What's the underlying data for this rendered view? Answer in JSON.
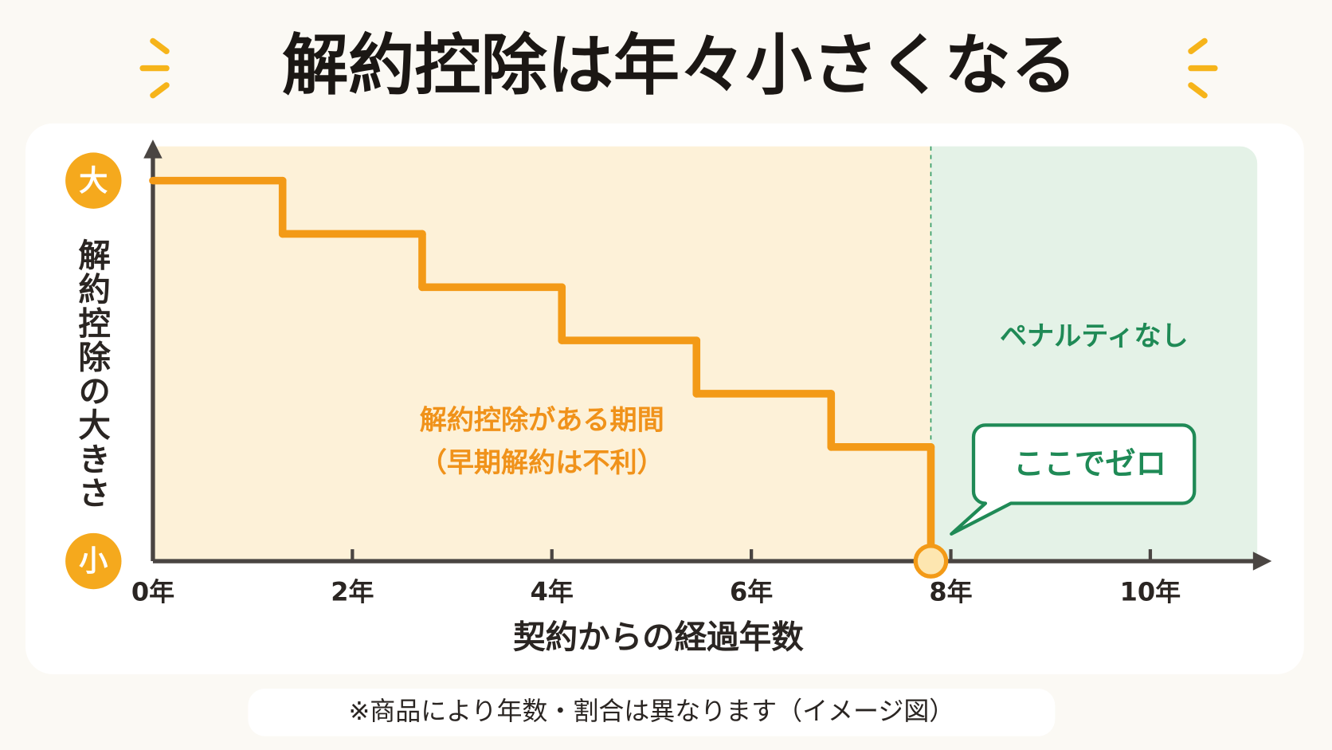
{
  "chart_data": {
    "type": "step",
    "title": "解約控除は年々小さくなる",
    "x_label": "契約からの経過年数",
    "y_label": "解約控除の大きさ",
    "x": [
      0,
      1.3,
      2.7,
      4.1,
      5.45,
      6.8,
      7.8
    ],
    "values": [
      100,
      86,
      72,
      58,
      44,
      30,
      0
    ],
    "color": "#f39a17",
    "xlim": [
      0,
      11.2
    ],
    "xticks": [
      {
        "value": 0,
        "label": "0年"
      },
      {
        "value": 2,
        "label": "2年"
      },
      {
        "value": 4,
        "label": "4年"
      },
      {
        "value": 6,
        "label": "6年"
      },
      {
        "value": 8,
        "label": "8年"
      },
      {
        "value": 10,
        "label": "10年"
      }
    ],
    "ylim": [
      0,
      109
    ],
    "yticks": [
      {
        "value": 100,
        "label": "大"
      },
      {
        "value": 0,
        "label": "小"
      }
    ],
    "annotations": {
      "period_line1": "解約控除がある期間",
      "period_line2": "（早期解約は不利）",
      "no_penalty": "ペナルティなし",
      "zero_callout": "ここでゼロ"
    },
    "footnote": "※商品により年数・割合は異なります（イメージ図）"
  }
}
